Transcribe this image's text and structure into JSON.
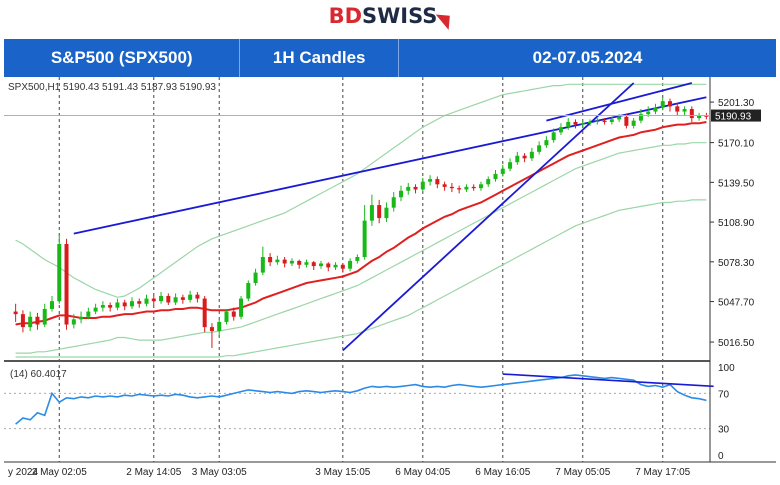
{
  "brand": {
    "part1": "BD",
    "part2": "SWISS"
  },
  "header": {
    "instrument": "S&P500 (SPX500)",
    "timeframe": "1H Candles",
    "dates": "02-07.05.2024"
  },
  "chart_data": {
    "type": "candlestick",
    "symbol_line": "SPX500,H1  5190.43 5191.43 5187.93 5190.93",
    "price_axis": {
      "ticks": [
        5201.3,
        5170.1,
        5139.5,
        5108.9,
        5078.3,
        5047.7,
        5016.5
      ],
      "range": [
        5005,
        5216
      ]
    },
    "current_price": 5190.93,
    "time_axis": {
      "ticks": [
        "y 2024",
        "2 May 02:05",
        "2 May 14:05",
        "3 May 03:05",
        "3 May 15:05",
        "6 May 04:05",
        "6 May 16:05",
        "7 May 05:05",
        "7 May 17:05"
      ]
    },
    "candles": [
      [
        5040,
        5038,
        5046,
        5032
      ],
      [
        5038,
        5028,
        5041,
        5024
      ],
      [
        5028,
        5036,
        5040,
        5025
      ],
      [
        5036,
        5030,
        5039,
        5026
      ],
      [
        5030,
        5042,
        5046,
        5028
      ],
      [
        5042,
        5048,
        5052,
        5040
      ],
      [
        5048,
        5092,
        5100,
        5046
      ],
      [
        5092,
        5030,
        5096,
        5026
      ],
      [
        5030,
        5034,
        5038,
        5027
      ],
      [
        5034,
        5036,
        5040,
        5031
      ],
      [
        5036,
        5040,
        5043,
        5034
      ],
      [
        5040,
        5043,
        5046,
        5038
      ],
      [
        5043,
        5045,
        5048,
        5040
      ],
      [
        5045,
        5043,
        5047,
        5040
      ],
      [
        5043,
        5047,
        5050,
        5041
      ],
      [
        5047,
        5044,
        5049,
        5041
      ],
      [
        5044,
        5048,
        5051,
        5042
      ],
      [
        5048,
        5046,
        5050,
        5043
      ],
      [
        5046,
        5050,
        5053,
        5044
      ],
      [
        5050,
        5048,
        5052,
        5045
      ],
      [
        5048,
        5052,
        5055,
        5046
      ],
      [
        5052,
        5047,
        5054,
        5045
      ],
      [
        5047,
        5051,
        5054,
        5045
      ],
      [
        5051,
        5049,
        5053,
        5046
      ],
      [
        5049,
        5053,
        5056,
        5047
      ],
      [
        5053,
        5050,
        5055,
        5047
      ],
      [
        5050,
        5028,
        5052,
        5024
      ],
      [
        5028,
        5025,
        5031,
        5012
      ],
      [
        5025,
        5032,
        5034,
        5020
      ],
      [
        5032,
        5040,
        5042,
        5030
      ],
      [
        5040,
        5036,
        5043,
        5033
      ],
      [
        5036,
        5050,
        5052,
        5034
      ],
      [
        5050,
        5062,
        5064,
        5048
      ],
      [
        5062,
        5070,
        5073,
        5060
      ],
      [
        5070,
        5082,
        5090,
        5068
      ],
      [
        5082,
        5078,
        5085,
        5075
      ],
      [
        5078,
        5080,
        5083,
        5076
      ],
      [
        5080,
        5077,
        5082,
        5074
      ],
      [
        5077,
        5079,
        5081,
        5075
      ],
      [
        5079,
        5076,
        5080,
        5073
      ],
      [
        5076,
        5078,
        5080,
        5074
      ],
      [
        5078,
        5075,
        5079,
        5072
      ],
      [
        5075,
        5077,
        5079,
        5073
      ],
      [
        5077,
        5074,
        5078,
        5071
      ],
      [
        5074,
        5076,
        5078,
        5072
      ],
      [
        5076,
        5073,
        5077,
        5070
      ],
      [
        5073,
        5079,
        5081,
        5071
      ],
      [
        5079,
        5082,
        5084,
        5077
      ],
      [
        5082,
        5110,
        5122,
        5080
      ],
      [
        5110,
        5122,
        5130,
        5106
      ],
      [
        5122,
        5112,
        5126,
        5108
      ],
      [
        5112,
        5120,
        5124,
        5109
      ],
      [
        5120,
        5128,
        5132,
        5117
      ],
      [
        5128,
        5133,
        5137,
        5125
      ],
      [
        5133,
        5136,
        5139,
        5130
      ],
      [
        5136,
        5134,
        5138,
        5131
      ],
      [
        5134,
        5140,
        5143,
        5132
      ],
      [
        5140,
        5142,
        5145,
        5137
      ],
      [
        5142,
        5138,
        5144,
        5135
      ],
      [
        5138,
        5136,
        5140,
        5133
      ],
      [
        5136,
        5135,
        5139,
        5132
      ],
      [
        5135,
        5134,
        5137,
        5131
      ],
      [
        5134,
        5136,
        5138,
        5132
      ],
      [
        5136,
        5135,
        5138,
        5133
      ],
      [
        5135,
        5138,
        5140,
        5133
      ],
      [
        5138,
        5142,
        5144,
        5136
      ],
      [
        5142,
        5146,
        5149,
        5140
      ],
      [
        5146,
        5150,
        5153,
        5144
      ],
      [
        5150,
        5155,
        5158,
        5148
      ],
      [
        5155,
        5160,
        5163,
        5153
      ],
      [
        5160,
        5158,
        5162,
        5155
      ],
      [
        5158,
        5163,
        5166,
        5156
      ],
      [
        5163,
        5168,
        5171,
        5161
      ],
      [
        5168,
        5172,
        5175,
        5166
      ],
      [
        5172,
        5178,
        5181,
        5170
      ],
      [
        5178,
        5182,
        5185,
        5176
      ],
      [
        5182,
        5186,
        5189,
        5180
      ],
      [
        5186,
        5184,
        5188,
        5181
      ],
      [
        5184,
        5185,
        5187,
        5182
      ],
      [
        5185,
        5186,
        5188,
        5183
      ],
      [
        5186,
        5187,
        5189,
        5184
      ],
      [
        5187,
        5186,
        5189,
        5184
      ],
      [
        5186,
        5188,
        5190,
        5184
      ],
      [
        5188,
        5190,
        5192,
        5186
      ],
      [
        5190,
        5183,
        5192,
        5181
      ],
      [
        5183,
        5187,
        5189,
        5181
      ],
      [
        5187,
        5192,
        5196,
        5185
      ],
      [
        5192,
        5194,
        5198,
        5190
      ],
      [
        5194,
        5197,
        5200,
        5192
      ],
      [
        5197,
        5202,
        5205,
        5195
      ],
      [
        5202,
        5198,
        5204,
        5194
      ],
      [
        5198,
        5194,
        5201,
        5191
      ],
      [
        5194,
        5196,
        5198,
        5191
      ],
      [
        5196,
        5189,
        5198,
        5186
      ],
      [
        5189,
        5191,
        5193,
        5187
      ],
      [
        5191,
        5190,
        5193,
        5188
      ]
    ],
    "moving_average_red": [
      5030,
      5031,
      5031,
      5032,
      5033,
      5035,
      5037,
      5037,
      5036,
      5035,
      5035,
      5035,
      5036,
      5036,
      5037,
      5038,
      5038,
      5039,
      5040,
      5040,
      5041,
      5041,
      5042,
      5042,
      5043,
      5043,
      5042,
      5041,
      5041,
      5041,
      5042,
      5043,
      5045,
      5047,
      5050,
      5052,
      5054,
      5056,
      5058,
      5060,
      5062,
      5063,
      5064,
      5065,
      5066,
      5067,
      5069,
      5071,
      5075,
      5079,
      5082,
      5086,
      5089,
      5093,
      5097,
      5100,
      5104,
      5107,
      5110,
      5113,
      5115,
      5118,
      5120,
      5122,
      5124,
      5127,
      5130,
      5133,
      5136,
      5139,
      5142,
      5145,
      5148,
      5151,
      5154,
      5157,
      5160,
      5162,
      5164,
      5166,
      5168,
      5170,
      5172,
      5174,
      5175,
      5176,
      5178,
      5179,
      5180,
      5182,
      5183,
      5184,
      5184,
      5185,
      5185,
      5186
    ],
    "bollinger_upper": [
      5095,
      5092,
      5088,
      5084,
      5080,
      5077,
      5074,
      5070,
      5066,
      5063,
      5060,
      5057,
      5055,
      5053,
      5051,
      5052,
      5055,
      5058,
      5062,
      5066,
      5070,
      5074,
      5078,
      5082,
      5086,
      5090,
      5093,
      5096,
      5098,
      5100,
      5102,
      5104,
      5106,
      5108,
      5110,
      5112,
      5114,
      5116,
      5119,
      5122,
      5125,
      5128,
      5131,
      5134,
      5137,
      5140,
      5143,
      5146,
      5150,
      5154,
      5158,
      5162,
      5166,
      5170,
      5174,
      5178,
      5182,
      5185,
      5188,
      5191,
      5193,
      5195,
      5197,
      5199,
      5201,
      5203,
      5205,
      5207,
      5208,
      5209,
      5210,
      5211,
      5212,
      5213,
      5214,
      5214,
      5215,
      5215,
      5215,
      5215,
      5215,
      5215,
      5215,
      5215,
      5215,
      5215,
      5215,
      5215,
      5215,
      5215,
      5215,
      5215,
      5215,
      5215,
      5215,
      5215
    ],
    "bollinger_lower": [
      5008,
      5008,
      5008,
      5009,
      5009,
      5010,
      5011,
      5012,
      5013,
      5014,
      5015,
      5016,
      5017,
      5018,
      5020,
      5020,
      5019,
      5018,
      5018,
      5018,
      5018,
      5019,
      5020,
      5021,
      5022,
      5023,
      5024,
      5024,
      5025,
      5026,
      5027,
      5028,
      5030,
      5032,
      5034,
      5036,
      5038,
      5040,
      5042,
      5044,
      5046,
      5048,
      5050,
      5052,
      5054,
      5056,
      5058,
      5060,
      5063,
      5066,
      5069,
      5072,
      5075,
      5078,
      5081,
      5084,
      5087,
      5090,
      5093,
      5096,
      5099,
      5102,
      5105,
      5108,
      5111,
      5114,
      5117,
      5120,
      5123,
      5126,
      5129,
      5132,
      5135,
      5138,
      5141,
      5144,
      5147,
      5150,
      5152,
      5154,
      5156,
      5158,
      5160,
      5162,
      5163,
      5164,
      5165,
      5166,
      5167,
      5168,
      5168,
      5169,
      5169,
      5170,
      5170,
      5170
    ],
    "ma_slow": [
      5005,
      5005,
      5005,
      5005,
      5005,
      5005,
      5005,
      5005,
      5005,
      5005,
      5005,
      5005,
      5005,
      5005,
      5005,
      5005,
      5005,
      5005,
      5005,
      5005,
      5005,
      5005,
      5005,
      5005,
      5005,
      5005,
      5005,
      5005,
      5005,
      5006,
      5006,
      5007,
      5008,
      5009,
      5010,
      5011,
      5012,
      5013,
      5014,
      5015,
      5016,
      5017,
      5018,
      5019,
      5020,
      5021,
      5022,
      5023,
      5025,
      5027,
      5029,
      5031,
      5033,
      5035,
      5037,
      5040,
      5043,
      5046,
      5049,
      5052,
      5055,
      5058,
      5061,
      5064,
      5067,
      5070,
      5073,
      5076,
      5079,
      5082,
      5085,
      5088,
      5091,
      5094,
      5097,
      5100,
      5103,
      5106,
      5108,
      5110,
      5112,
      5114,
      5116,
      5118,
      5119,
      5120,
      5121,
      5122,
      5123,
      5124,
      5124,
      5125,
      5125,
      5126,
      5126,
      5126
    ],
    "trendlines": [
      {
        "color": "#1a1ad6",
        "from": [
          8,
          5100
        ],
        "to": [
          95,
          5205
        ]
      },
      {
        "color": "#1a1ad6",
        "from": [
          45,
          5010
        ],
        "to": [
          85,
          5216
        ]
      },
      {
        "color": "#1a1ad6",
        "from": [
          73,
          5187
        ],
        "to": [
          93,
          5216
        ]
      }
    ],
    "oscillator": {
      "label": "(14) 60.4017",
      "ticks": [
        100,
        70,
        30,
        0
      ],
      "values": [
        35,
        42,
        40,
        48,
        45,
        70,
        60,
        65,
        64,
        66,
        65,
        67,
        66,
        67,
        66,
        68,
        67,
        69,
        68,
        67,
        68,
        67,
        69,
        68,
        66,
        65,
        66,
        67,
        66,
        68,
        70,
        72,
        74,
        73,
        72,
        71,
        72,
        71,
        70,
        72,
        73,
        72,
        71,
        72,
        73,
        72,
        71,
        73,
        76,
        78,
        77,
        78,
        77,
        78,
        79,
        80,
        78,
        77,
        78,
        77,
        79,
        80,
        79,
        78,
        77,
        78,
        79,
        80,
        81,
        82,
        83,
        84,
        85,
        86,
        87,
        88,
        90,
        91,
        90,
        89,
        88,
        87,
        88,
        87,
        86,
        85,
        80,
        78,
        79,
        77,
        80,
        72,
        68,
        65,
        64,
        62
      ],
      "trendline": {
        "from": [
          67,
          92
        ],
        "to": [
          96,
          78
        ]
      }
    }
  }
}
